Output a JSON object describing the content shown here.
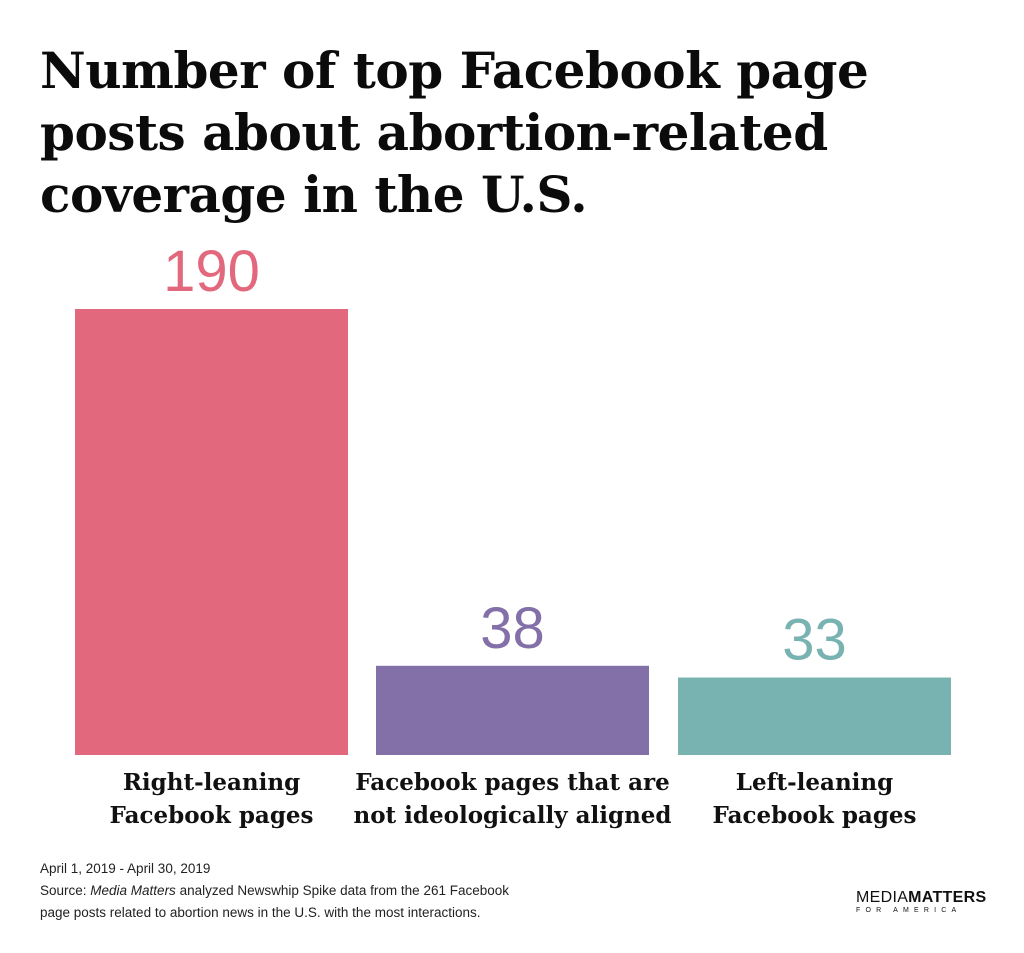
{
  "chart_data": {
    "type": "bar",
    "title": "Number of top Facebook page posts about abortion-related coverage in the U.S.",
    "categories": [
      [
        "Right-leaning",
        "Facebook pages"
      ],
      [
        "Facebook pages that are",
        "not ideologically aligned"
      ],
      [
        "Left-leaning",
        "Facebook pages"
      ]
    ],
    "values": [
      190,
      38,
      33
    ],
    "colors": [
      "#e2687e",
      "#8470a8",
      "#78b3b1"
    ],
    "ylim": [
      0,
      190
    ],
    "grid": false,
    "legend": "none"
  },
  "footer": {
    "date_range": "April 1, 2019 - April 30, 2019",
    "source_prefix": "Source: ",
    "source_italic": "Media Matters",
    "source_rest": " analyzed Newswhip Spike data from the 261 Facebook",
    "source_line2": "page posts related to abortion news in the U.S. with the most interactions."
  },
  "logo": {
    "word1": "MEDIA",
    "word2": "MATTERS",
    "sub": "FOR AMERICA"
  }
}
